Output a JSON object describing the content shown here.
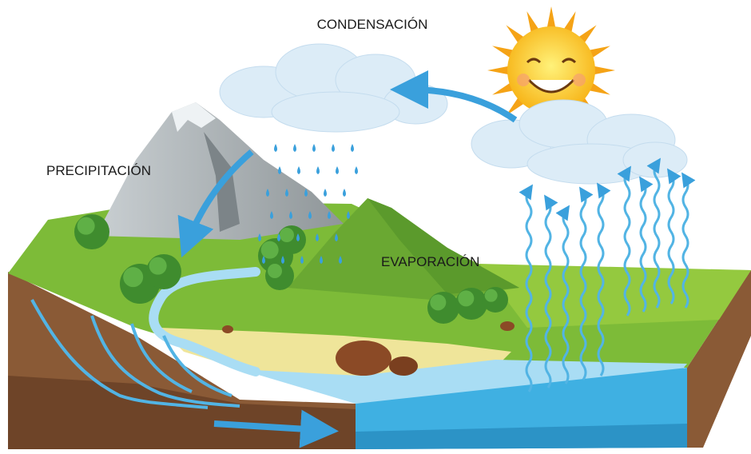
{
  "labels": [
    "CONDENSACIÓN",
    "PRECIPITACIÓN",
    "EVAPORACIÓN"
  ]
}
